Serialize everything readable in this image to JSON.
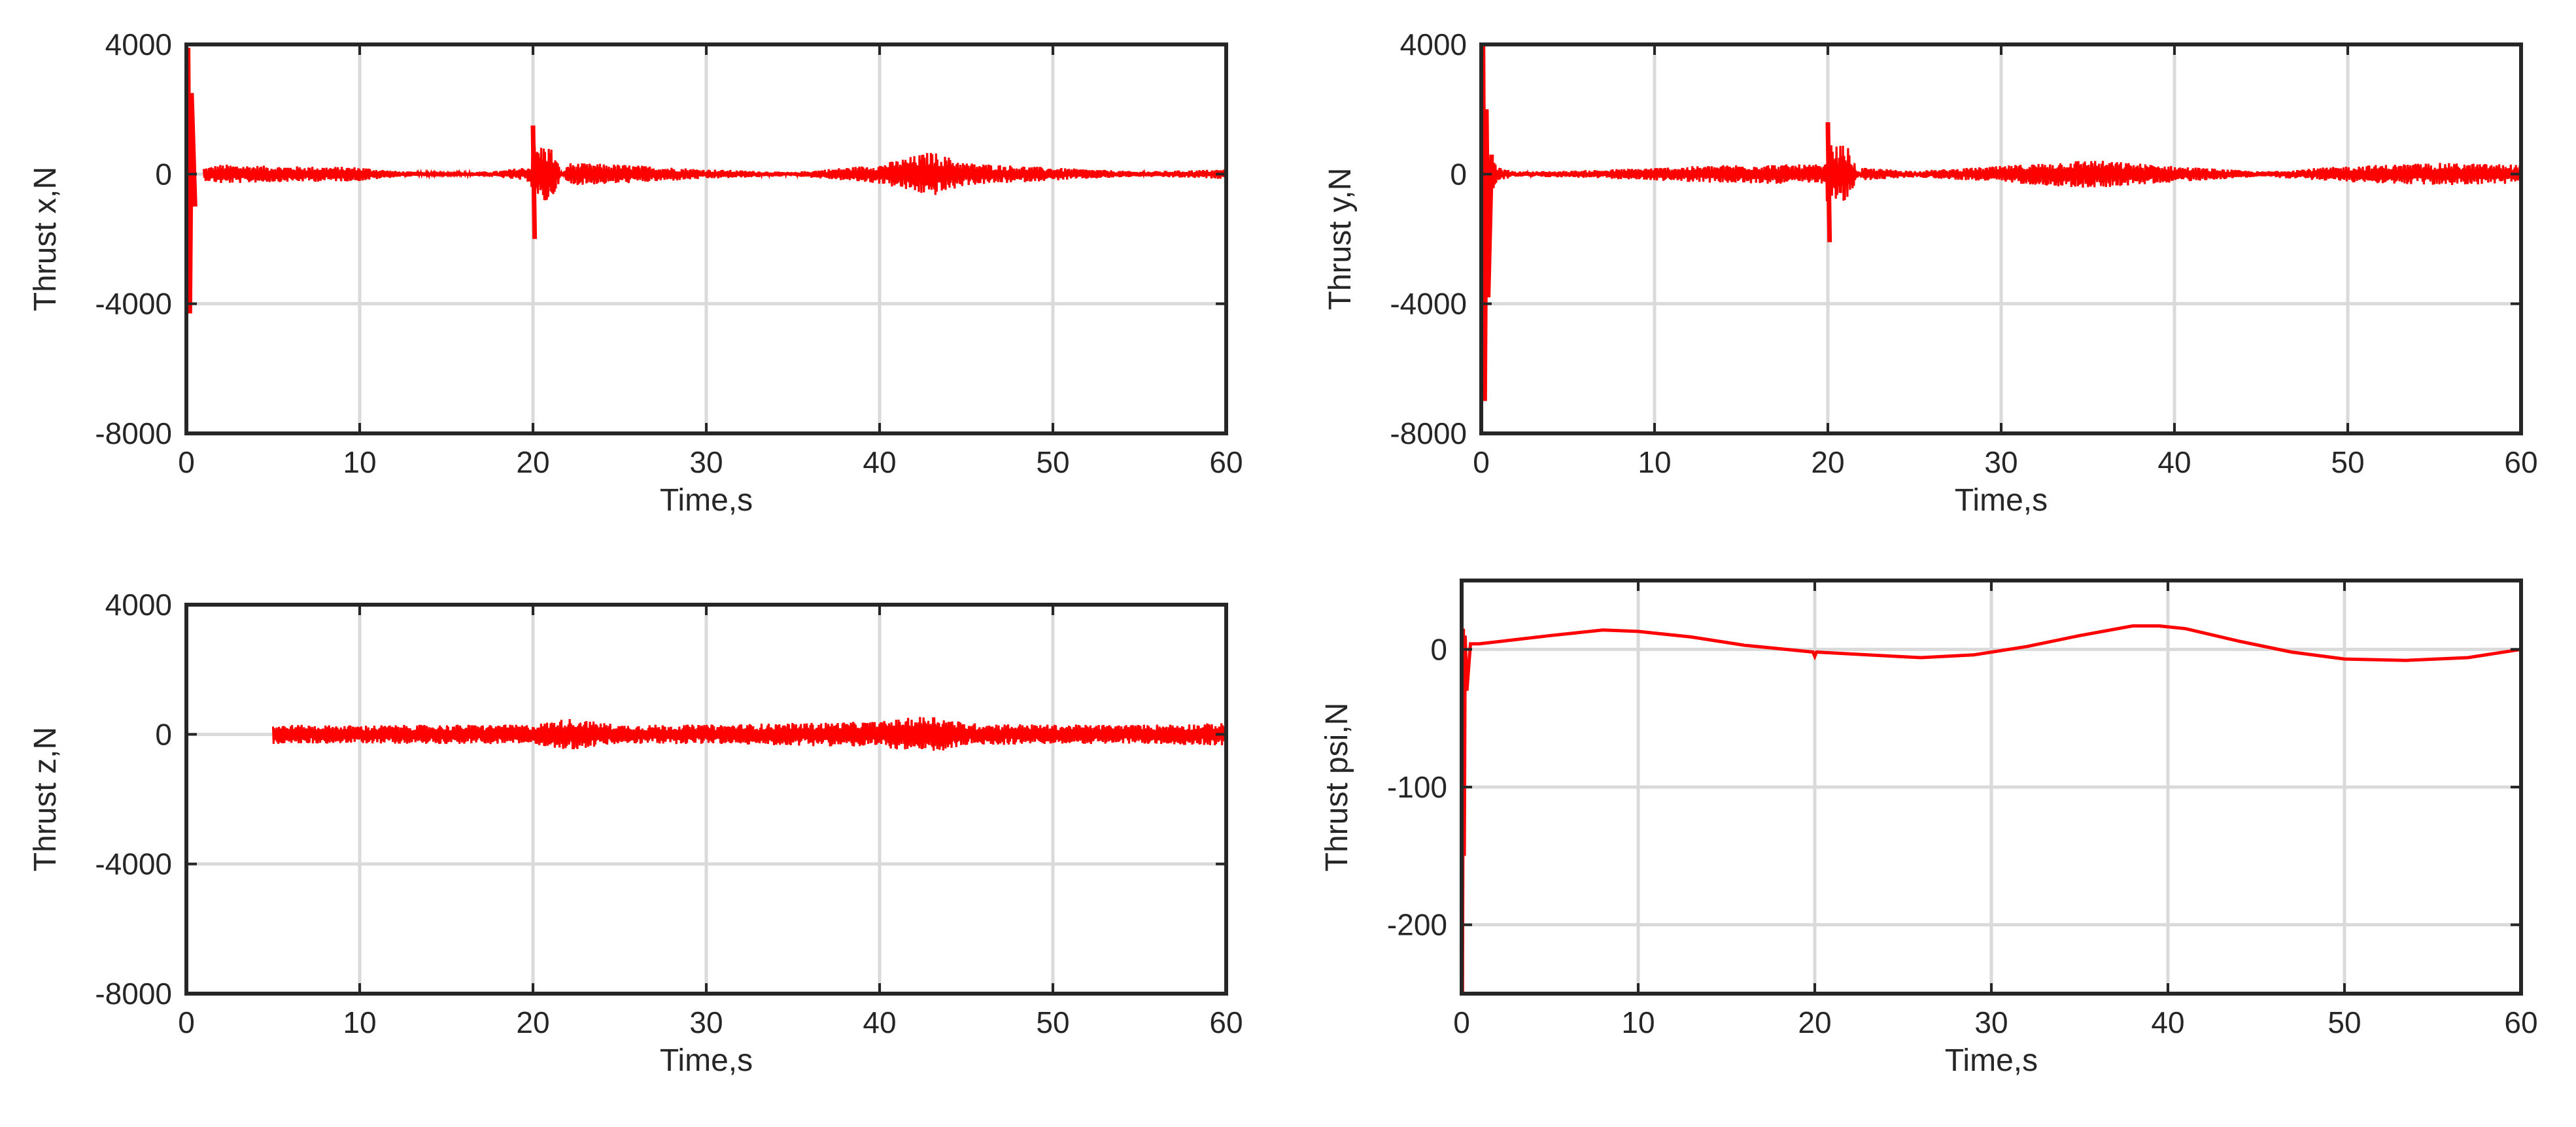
{
  "colors": {
    "series": "#ff0000",
    "grid": "#dadada",
    "axes": "#262626",
    "background": "#ffffff"
  },
  "chart_data": [
    {
      "type": "line",
      "xlabel": "Time,s",
      "ylabel": "Thrust x,N",
      "xlim": [
        0,
        60
      ],
      "ylim": [
        -8000,
        4000
      ],
      "xticks": [
        0,
        10,
        20,
        30,
        40,
        50,
        60
      ],
      "yticks": [
        4000,
        0,
        -4000,
        -8000
      ],
      "grid": true,
      "series": [
        {
          "x": [
            0,
            0.1,
            0.2,
            0.3,
            0.5,
            1,
            2,
            5,
            10,
            12,
            15,
            18,
            19.9,
            20,
            20.1,
            22,
            25,
            30,
            35,
            40,
            43,
            45,
            50,
            55,
            60
          ],
          "y": [
            0,
            3900,
            -4300,
            2500,
            -1000,
            200,
            300,
            250,
            220,
            100,
            30,
            100,
            250,
            1500,
            -2000,
            350,
            300,
            150,
            60,
            300,
            700,
            350,
            200,
            80,
            150
          ]
        }
      ]
    },
    {
      "type": "line",
      "xlabel": "Time,s",
      "ylabel": "Thrust y,N",
      "xlim": [
        0,
        60
      ],
      "ylim": [
        -8000,
        4000
      ],
      "xticks": [
        0,
        10,
        20,
        30,
        40,
        50,
        60
      ],
      "yticks": [
        4000,
        0,
        -4000,
        -8000
      ],
      "grid": true,
      "series": [
        {
          "x": [
            0,
            0.1,
            0.2,
            0.3,
            0.4,
            0.6,
            1,
            2,
            5,
            10,
            15,
            19.9,
            20,
            20.1,
            22,
            25,
            30,
            35,
            40,
            45,
            50,
            55,
            60
          ],
          "y": [
            0,
            4000,
            -7000,
            2000,
            -3800,
            600,
            200,
            80,
            100,
            200,
            300,
            300,
            1600,
            -2100,
            200,
            100,
            250,
            450,
            250,
            80,
            250,
            350,
            300
          ]
        }
      ]
    },
    {
      "type": "line",
      "xlabel": "Time,s",
      "ylabel": "Thrust z,N",
      "xlim": [
        0,
        60
      ],
      "ylim": [
        -8000,
        4000
      ],
      "xticks": [
        0,
        10,
        20,
        30,
        40,
        50,
        60
      ],
      "yticks": [
        4000,
        0,
        -4000,
        -8000
      ],
      "grid": true,
      "series": [
        {
          "x": [
            0,
            5,
            10,
            15,
            20,
            22,
            25,
            30,
            35,
            40,
            43,
            45,
            50,
            55,
            60
          ],
          "y": [
            250,
            300,
            280,
            300,
            300,
            500,
            300,
            300,
            350,
            400,
            600,
            350,
            300,
            300,
            350
          ]
        }
      ]
    },
    {
      "type": "line",
      "xlabel": "Time,s",
      "ylabel": "Thrust psi,N",
      "xlim": [
        0,
        60
      ],
      "ylim": [
        -250,
        50
      ],
      "xticks": [
        0,
        10,
        20,
        30,
        40,
        50,
        60
      ],
      "yticks": [
        0,
        -100,
        -200
      ],
      "grid": true,
      "series": [
        {
          "x": [
            0,
            0.05,
            0.1,
            0.15,
            0.2,
            0.3,
            0.5,
            1,
            3,
            5,
            8,
            10,
            13,
            16,
            19.9,
            20,
            20.1,
            23,
            26,
            29,
            32,
            35,
            38,
            39.5,
            41,
            44,
            47,
            50,
            53.5,
            57,
            60
          ],
          "y": [
            0,
            -250,
            15,
            -150,
            10,
            -30,
            4,
            4,
            7,
            10,
            14,
            13,
            9,
            3,
            -2,
            -5,
            -2,
            -4,
            -6,
            -4,
            2,
            10,
            17,
            17,
            15,
            6,
            -2,
            -7,
            -8,
            -6,
            0
          ]
        }
      ]
    }
  ]
}
